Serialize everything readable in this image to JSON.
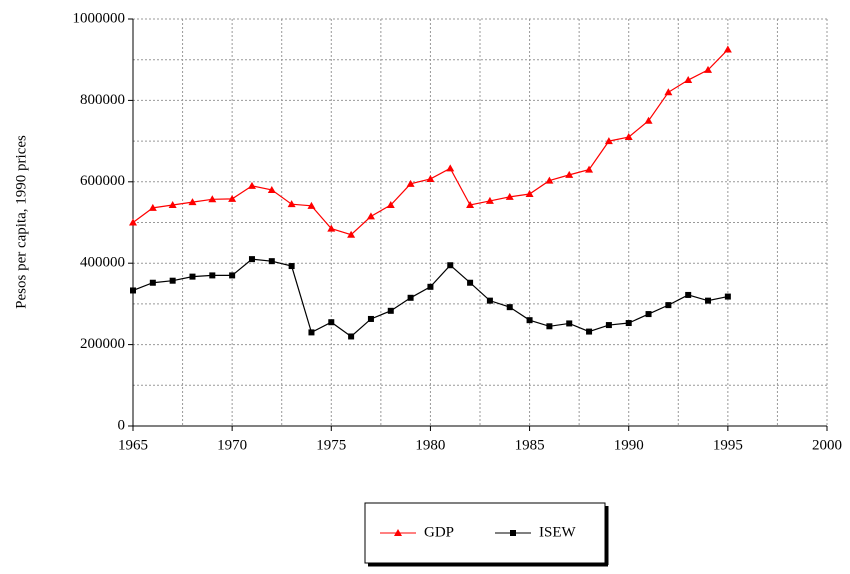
{
  "chart_data": {
    "type": "line",
    "ylabel": "Pesos per capita, 1990 prices",
    "x": [
      1965,
      1966,
      1967,
      1968,
      1969,
      1970,
      1971,
      1972,
      1973,
      1974,
      1975,
      1976,
      1977,
      1978,
      1979,
      1980,
      1981,
      1982,
      1983,
      1984,
      1985,
      1986,
      1987,
      1988,
      1989,
      1990,
      1991,
      1992,
      1993,
      1994,
      1995
    ],
    "series": [
      {
        "name": "GDP",
        "color": "#ff0000",
        "marker": "triangle",
        "values": [
          500000,
          536000,
          543000,
          550000,
          557000,
          558000,
          590000,
          580000,
          545000,
          541000,
          485000,
          470000,
          515000,
          543000,
          595000,
          607000,
          633000,
          543000,
          553000,
          563000,
          570000,
          603000,
          617000,
          630000,
          700000,
          710000,
          750000,
          820000,
          850000,
          875000,
          925000
        ]
      },
      {
        "name": "ISEW",
        "color": "#000000",
        "marker": "square",
        "values": [
          333000,
          352000,
          357000,
          367000,
          370000,
          370000,
          410000,
          405000,
          393000,
          230000,
          255000,
          220000,
          263000,
          283000,
          315000,
          342000,
          395000,
          352000,
          308000,
          292000,
          260000,
          245000,
          252000,
          232000,
          248000,
          253000,
          275000,
          297000,
          322000,
          308000,
          318000
        ]
      }
    ],
    "xlim": [
      1965,
      2000
    ],
    "xticks": [
      1965,
      1970,
      1975,
      1980,
      1985,
      1990,
      1995,
      2000
    ],
    "ylim": [
      0,
      1000000
    ],
    "yticks": [
      0,
      200000,
      400000,
      600000,
      800000,
      1000000
    ],
    "grid": true,
    "grid_subdivisions": 2,
    "legend": "bottom"
  }
}
